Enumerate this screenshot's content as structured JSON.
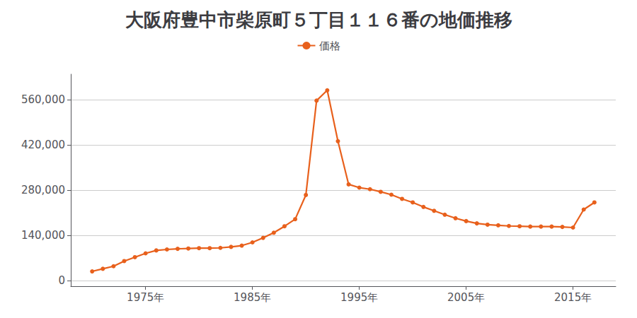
{
  "chart_data": {
    "type": "line",
    "title": "大阪府豊中市柴原町５丁目１１６番の地価推移",
    "x": [
      1970,
      1971,
      1972,
      1973,
      1974,
      1975,
      1976,
      1977,
      1978,
      1979,
      1980,
      1981,
      1982,
      1983,
      1984,
      1985,
      1986,
      1987,
      1988,
      1989,
      1990,
      1991,
      1992,
      1993,
      1994,
      1995,
      1996,
      1997,
      1998,
      1999,
      2000,
      2001,
      2002,
      2003,
      2004,
      2005,
      2006,
      2007,
      2008,
      2009,
      2010,
      2011,
      2012,
      2013,
      2014,
      2015,
      2016,
      2017
    ],
    "series": [
      {
        "name": "価格",
        "color": "#E8601C",
        "marker": "circle",
        "values": [
          28000,
          36000,
          44000,
          60000,
          72000,
          84000,
          93000,
          96000,
          98000,
          99000,
          100000,
          100000,
          101000,
          104000,
          108000,
          118000,
          132000,
          148000,
          168000,
          190000,
          265000,
          558000,
          590000,
          432000,
          298000,
          288000,
          283000,
          275000,
          266000,
          253000,
          242000,
          228000,
          216000,
          204000,
          193000,
          184000,
          177000,
          173000,
          171000,
          169000,
          168000,
          167000,
          167000,
          167000,
          166000,
          164000,
          220000,
          242000
        ]
      }
    ],
    "xlim": [
      1968,
      2019
    ],
    "xticks": [
      {
        "value": 1975,
        "label": "1975年"
      },
      {
        "value": 1985,
        "label": "1985年"
      },
      {
        "value": 1995,
        "label": "1995年"
      },
      {
        "value": 2005,
        "label": "2005年"
      },
      {
        "value": 2015,
        "label": "2015年"
      }
    ],
    "ylim": [
      -18000,
      640000
    ],
    "yticks": [
      0,
      {
        "value": 140000,
        "label": "140,000"
      },
      {
        "value": 280000,
        "label": "280,000"
      },
      {
        "value": 420000,
        "label": "420,000"
      },
      {
        "value": 560000,
        "label": "560,000"
      }
    ],
    "grid": true,
    "legend": "top"
  }
}
